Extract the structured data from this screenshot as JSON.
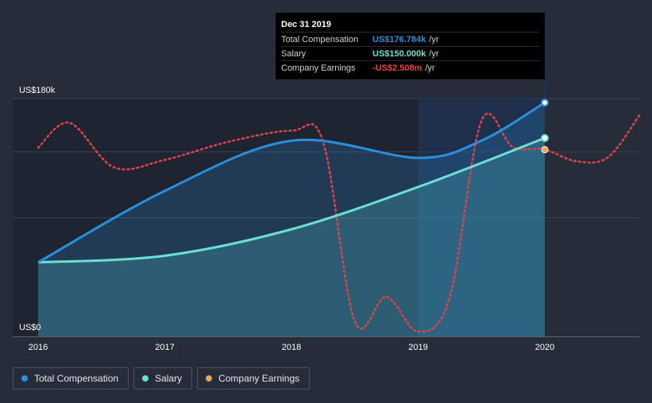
{
  "chart_data": {
    "type": "line",
    "x": [
      2016,
      2017,
      2018,
      2019,
      2020
    ],
    "xlim": [
      2016,
      2020.75
    ],
    "ylim": [
      0,
      180000
    ],
    "y_tick_labels": [
      "US$180k",
      "US$0"
    ],
    "x_tick_labels": [
      "2016",
      "2017",
      "2018",
      "2019",
      "2020"
    ],
    "series": [
      {
        "name": "Total Compensation",
        "color": "#2b8fe0",
        "x": [
          2016.0,
          2017.0,
          2018.0,
          2019.0,
          2019.5,
          2020.0
        ],
        "values": [
          56000,
          110000,
          148000,
          135000,
          148000,
          176784
        ]
      },
      {
        "name": "Salary",
        "color": "#6de0d6",
        "x": [
          2016.0,
          2017.0,
          2018.0,
          2019.0,
          2020.0
        ],
        "values": [
          56000,
          61000,
          81000,
          113000,
          150000
        ]
      },
      {
        "name": "Company Earnings",
        "color": "#e2424d",
        "style": "dotted",
        "x": [
          2016.0,
          2016.25,
          2016.6,
          2017.0,
          2017.5,
          2018.0,
          2018.25,
          2018.5,
          2018.75,
          2019.0,
          2019.25,
          2019.5,
          2019.75,
          2020.0,
          2020.25,
          2020.5,
          2020.75
        ],
        "values": [
          -2.45,
          -1.72,
          -3.03,
          -2.81,
          -2.28,
          -1.95,
          -2.28,
          -7.56,
          -6.84,
          -7.86,
          -6.85,
          -1.66,
          -2.44,
          -2.508,
          -2.85,
          -2.73,
          -1.48
        ],
        "ylim": [
          -8.0,
          -1.0
        ]
      }
    ],
    "highlight_range": [
      2019.0,
      2020.0
    ],
    "grid": true,
    "legend": "bottom-left"
  },
  "tooltip": {
    "title": "Dec 31 2019",
    "rows": [
      {
        "label": "Total Compensation",
        "value": "US$176.784k",
        "unit": "/yr",
        "color": "#2b8fe0"
      },
      {
        "label": "Salary",
        "value": "US$150.000k",
        "unit": "/yr",
        "color": "#6de0d6"
      },
      {
        "label": "Company Earnings",
        "value": "-US$2.508m",
        "unit": "/yr",
        "color": "#e2424d"
      }
    ]
  },
  "legend": {
    "items": [
      {
        "label": "Total Compensation",
        "color": "#2b8fe0"
      },
      {
        "label": "Salary",
        "color": "#6de0d6"
      },
      {
        "label": "Company Earnings",
        "color": "#e6a45a"
      }
    ]
  }
}
